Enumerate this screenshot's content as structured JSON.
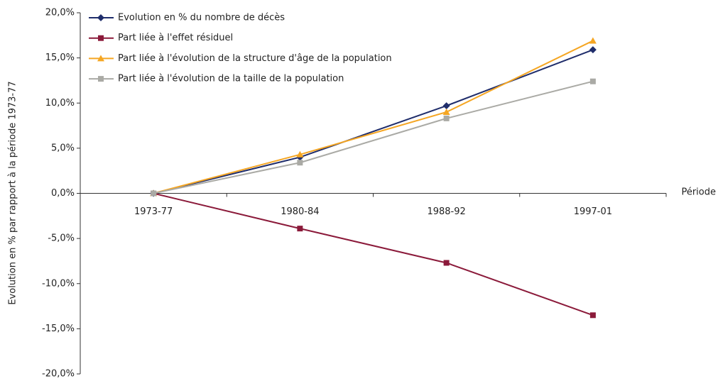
{
  "chart_data": {
    "type": "line",
    "x_label": "Période",
    "y_label": "Evolution en % par rapport à la période 1973-77",
    "categories": [
      "1973-77",
      "1980-84",
      "1988-92",
      "1997-01"
    ],
    "series": [
      {
        "name": "Evolution en % du nombre de décès",
        "color": "#1f2d6b",
        "marker": "diamond",
        "values": [
          0,
          4.0,
          9.7,
          15.9
        ]
      },
      {
        "name": "Part liée à l'effet résiduel",
        "color": "#8b1a3a",
        "marker": "square",
        "values": [
          0,
          -3.9,
          -7.7,
          -13.5
        ]
      },
      {
        "name": "Part liée à l'évolution de la structure d'âge de la population",
        "color": "#f5a623",
        "marker": "triangle",
        "values": [
          0,
          4.3,
          9.0,
          16.9
        ]
      },
      {
        "name": "Part liée à l'évolution de la taille de la population",
        "color": "#aaaaa5",
        "marker": "square",
        "values": [
          0,
          3.4,
          8.3,
          12.4
        ]
      }
    ],
    "ylim": [
      -20,
      20
    ],
    "yticks": [
      {
        "value": -20,
        "label": "-20,0%"
      },
      {
        "value": -15,
        "label": "-15,0%"
      },
      {
        "value": -10,
        "label": "-10,0%"
      },
      {
        "value": -5,
        "label": "-5,0%"
      },
      {
        "value": 0,
        "label": "0,0%"
      },
      {
        "value": 5,
        "label": "5,0%"
      },
      {
        "value": 10,
        "label": "10,0%"
      },
      {
        "value": 15,
        "label": "15,0%"
      },
      {
        "value": 20,
        "label": "20,0%"
      }
    ],
    "grid": false,
    "legend": "top-left"
  }
}
